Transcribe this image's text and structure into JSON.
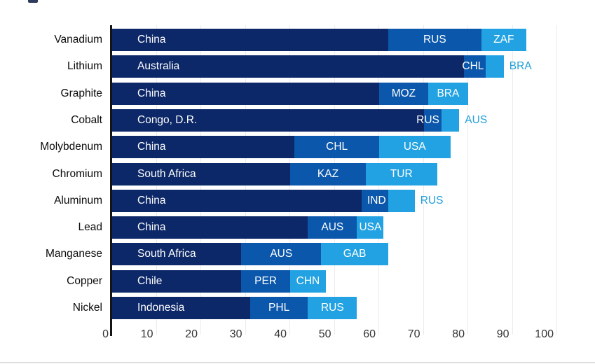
{
  "chart_data": {
    "type": "stacked-bar-horizontal",
    "title": "",
    "xlabel": "",
    "ylabel": "",
    "xlim": [
      0,
      100
    ],
    "grid": true,
    "x_ticks": [
      0,
      10,
      20,
      30,
      40,
      50,
      60,
      70,
      80,
      90,
      100
    ],
    "colors": {
      "rank1": "#0d2868",
      "rank2": "#0b57ab",
      "rank3": "#22a2e2",
      "outside_label_text": "#1f9ed8",
      "axis_line": "#141414",
      "gridline": "#ececec",
      "tick_text": "#333333",
      "category_text": "#0b0b0b",
      "segment_text": "#ffffff"
    },
    "rows": [
      {
        "mineral": "Vanadium",
        "segments": [
          {
            "label": "China",
            "value": 62
          },
          {
            "label": "RUS",
            "value": 21
          },
          {
            "label": "ZAF",
            "value": 10
          }
        ]
      },
      {
        "mineral": "Lithium",
        "segments": [
          {
            "label": "Australia",
            "value": 79
          },
          {
            "label": "CHL",
            "value": 5
          },
          {
            "label": "BRA",
            "value": 4,
            "label_outside": true
          }
        ]
      },
      {
        "mineral": "Graphite",
        "segments": [
          {
            "label": "China",
            "value": 60
          },
          {
            "label": "MOZ",
            "value": 11
          },
          {
            "label": "BRA",
            "value": 9
          }
        ]
      },
      {
        "mineral": "Cobalt",
        "segments": [
          {
            "label": "Congo, D.R.",
            "value": 70
          },
          {
            "label": "RUS",
            "value": 4
          },
          {
            "label": "AUS",
            "value": 4,
            "label_outside": true
          }
        ]
      },
      {
        "mineral": "Molybdenum",
        "segments": [
          {
            "label": "China",
            "value": 41
          },
          {
            "label": "CHL",
            "value": 19
          },
          {
            "label": "USA",
            "value": 16
          }
        ]
      },
      {
        "mineral": "Chromium",
        "segments": [
          {
            "label": "South Africa",
            "value": 40
          },
          {
            "label": "KAZ",
            "value": 17
          },
          {
            "label": "TUR",
            "value": 16
          }
        ]
      },
      {
        "mineral": "Aluminum",
        "segments": [
          {
            "label": "China",
            "value": 56
          },
          {
            "label": "IND",
            "value": 6
          },
          {
            "label": "RUS",
            "value": 6,
            "label_outside": true
          }
        ]
      },
      {
        "mineral": "Lead",
        "segments": [
          {
            "label": "China",
            "value": 44
          },
          {
            "label": "AUS",
            "value": 11
          },
          {
            "label": "USA",
            "value": 6
          }
        ]
      },
      {
        "mineral": "Manganese",
        "segments": [
          {
            "label": "South Africa",
            "value": 29
          },
          {
            "label": "AUS",
            "value": 18
          },
          {
            "label": "GAB",
            "value": 15
          }
        ]
      },
      {
        "mineral": "Copper",
        "segments": [
          {
            "label": "Chile",
            "value": 29
          },
          {
            "label": "PER",
            "value": 11
          },
          {
            "label": "CHN",
            "value": 8
          }
        ]
      },
      {
        "mineral": "Nickel",
        "segments": [
          {
            "label": "Indonesia",
            "value": 31
          },
          {
            "label": "PHL",
            "value": 13
          },
          {
            "label": "RUS",
            "value": 11
          }
        ]
      }
    ]
  }
}
